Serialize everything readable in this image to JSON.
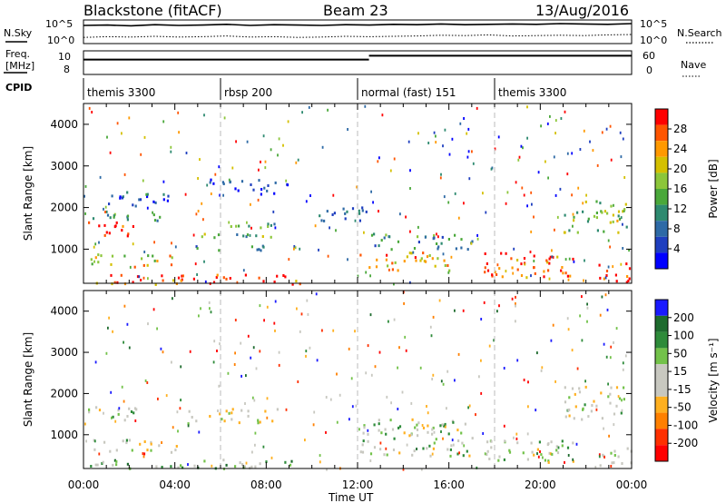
{
  "header": {
    "radar": "Blackstone (fitACF)",
    "beam": "Beam 23",
    "date": "13/Aug/2016"
  },
  "noise_panel": {
    "left_label": "N.Sky",
    "right_label": "N.Search",
    "left_ticks": [
      "10^5",
      "10^0"
    ],
    "right_ticks": [
      "10^5",
      "10^0"
    ],
    "sky_line": [
      4.5,
      4.6,
      4.4,
      4.7,
      4.5,
      4.6,
      4.8,
      4.5,
      4.7,
      4.6,
      4.5,
      4.7,
      4.6,
      4.8,
      4.7,
      4.9,
      4.7,
      4.8,
      4.9,
      4.8,
      5.0,
      4.9,
      4.8,
      5.0
    ],
    "search_line": [
      1.2,
      1.4,
      1.3,
      1.5,
      1.3,
      1.4,
      1.6,
      1.3,
      1.4,
      1.2,
      1.3,
      1.5,
      1.4,
      1.5,
      1.6,
      1.8,
      1.7,
      1.9,
      1.6,
      1.7,
      1.8,
      1.7,
      1.9,
      2.0
    ]
  },
  "freq_panel": {
    "left_label_1": "Freq.",
    "left_label_2": "[MHz]",
    "right_label": "Nave",
    "left_ticks": [
      "10",
      "8"
    ],
    "right_ticks": [
      "60",
      "0"
    ],
    "freq_segments": [
      {
        "start": 0,
        "end": 12.5,
        "value": 10.2
      },
      {
        "start": 12.5,
        "end": 24,
        "value": 10.8
      }
    ]
  },
  "cpid": {
    "label": "CPID",
    "segments": [
      {
        "start": 0,
        "end": 6,
        "text": "themis 3300"
      },
      {
        "start": 6,
        "end": 12,
        "text": "rbsp 200"
      },
      {
        "start": 12,
        "end": 18,
        "text": "normal (fast) 151"
      },
      {
        "start": 18,
        "end": 24,
        "text": "themis 3300"
      }
    ]
  },
  "x_axis": {
    "label": "Time UT",
    "ticks": [
      "00:00",
      "04:00",
      "08:00",
      "12:00",
      "16:00",
      "20:00",
      "00:00"
    ],
    "hours": [
      0,
      4,
      8,
      12,
      16,
      20,
      24
    ]
  },
  "chart_data": [
    {
      "type": "heatmap",
      "name": "power",
      "ylabel": "Slant Range [km]",
      "yticks": [
        1000,
        2000,
        3000,
        4000
      ],
      "ylim": [
        180,
        4500
      ],
      "xlim": [
        0,
        24
      ],
      "colorbar": {
        "label": "Power [dB]",
        "ticks": [
          "4",
          "8",
          "12",
          "16",
          "20",
          "24",
          "28"
        ],
        "colors": [
          "#0000ff",
          "#1f3fbf",
          "#2e6aa6",
          "#2e8a70",
          "#4aa83a",
          "#8cc63a",
          "#d4c000",
          "#ff9900",
          "#ff5500",
          "#ff0000"
        ]
      },
      "blobs": [
        {
          "t0": 0.2,
          "t1": 2.3,
          "r0": 1300,
          "r1": 1700,
          "level": 9
        },
        {
          "t0": 0.2,
          "t1": 3.5,
          "r0": 1700,
          "r1": 1950,
          "level": 3
        },
        {
          "t0": 0.3,
          "t1": 4.2,
          "r0": 600,
          "r1": 900,
          "level": 6
        },
        {
          "t0": 1.0,
          "t1": 3.8,
          "r0": 2000,
          "r1": 2400,
          "level": 1
        },
        {
          "t0": 0.2,
          "t1": 9.5,
          "r0": 180,
          "r1": 420,
          "level": 8
        },
        {
          "t0": 4.5,
          "t1": 8.0,
          "r0": 1000,
          "r1": 1150,
          "level": 3
        },
        {
          "t0": 5.0,
          "t1": 8.5,
          "r0": 1300,
          "r1": 1650,
          "level": 4
        },
        {
          "t0": 5.5,
          "t1": 9.0,
          "r0": 2300,
          "r1": 2700,
          "level": 1
        },
        {
          "t0": 10.0,
          "t1": 12.5,
          "r0": 1700,
          "r1": 2100,
          "level": 2
        },
        {
          "t0": 12.0,
          "t1": 16.0,
          "r0": 500,
          "r1": 950,
          "level": 7
        },
        {
          "t0": 12.5,
          "t1": 17.0,
          "r0": 1000,
          "r1": 1400,
          "level": 3
        },
        {
          "t0": 17.5,
          "t1": 21.5,
          "r0": 350,
          "r1": 950,
          "level": 8
        },
        {
          "t0": 21.0,
          "t1": 23.8,
          "r0": 1400,
          "r1": 2200,
          "level": 5
        },
        {
          "t0": 22.5,
          "t1": 24.0,
          "r0": 200,
          "r1": 700,
          "level": 9
        }
      ]
    },
    {
      "type": "heatmap",
      "name": "velocity",
      "ylabel": "Slant Range [km]",
      "yticks": [
        1000,
        2000,
        3000,
        4000
      ],
      "ylim": [
        180,
        4500
      ],
      "xlim": [
        0,
        24
      ],
      "colorbar": {
        "label": "Velocity [m s⁻¹]",
        "ticks": [
          "200",
          "100",
          "50",
          "15",
          "-15",
          "-50",
          "-100",
          "-200"
        ],
        "colors": [
          "#1a1aff",
          "#1e6b2e",
          "#2e8b3a",
          "#73c24a",
          "#c8c8c0",
          "#c8c8c0",
          "#ffb020",
          "#ff8000",
          "#ff3000",
          "#ff0000"
        ]
      },
      "blobs": [
        {
          "t0": 0.2,
          "t1": 2.3,
          "r0": 1300,
          "r1": 1700,
          "level": 4
        },
        {
          "t0": 0.3,
          "t1": 4.2,
          "r0": 600,
          "r1": 900,
          "level": 4
        },
        {
          "t0": 0.2,
          "t1": 9.5,
          "r0": 180,
          "r1": 420,
          "level": 3
        },
        {
          "t0": 4.5,
          "t1": 8.5,
          "r0": 1300,
          "r1": 1650,
          "level": 5
        },
        {
          "t0": 12.0,
          "t1": 17.0,
          "r0": 500,
          "r1": 1400,
          "level": 4
        },
        {
          "t0": 17.5,
          "t1": 21.5,
          "r0": 350,
          "r1": 950,
          "level": 4
        },
        {
          "t0": 21.0,
          "t1": 23.8,
          "r0": 1400,
          "r1": 2200,
          "level": 4
        },
        {
          "t0": 22.5,
          "t1": 24.0,
          "r0": 200,
          "r1": 700,
          "level": 4
        }
      ]
    }
  ]
}
